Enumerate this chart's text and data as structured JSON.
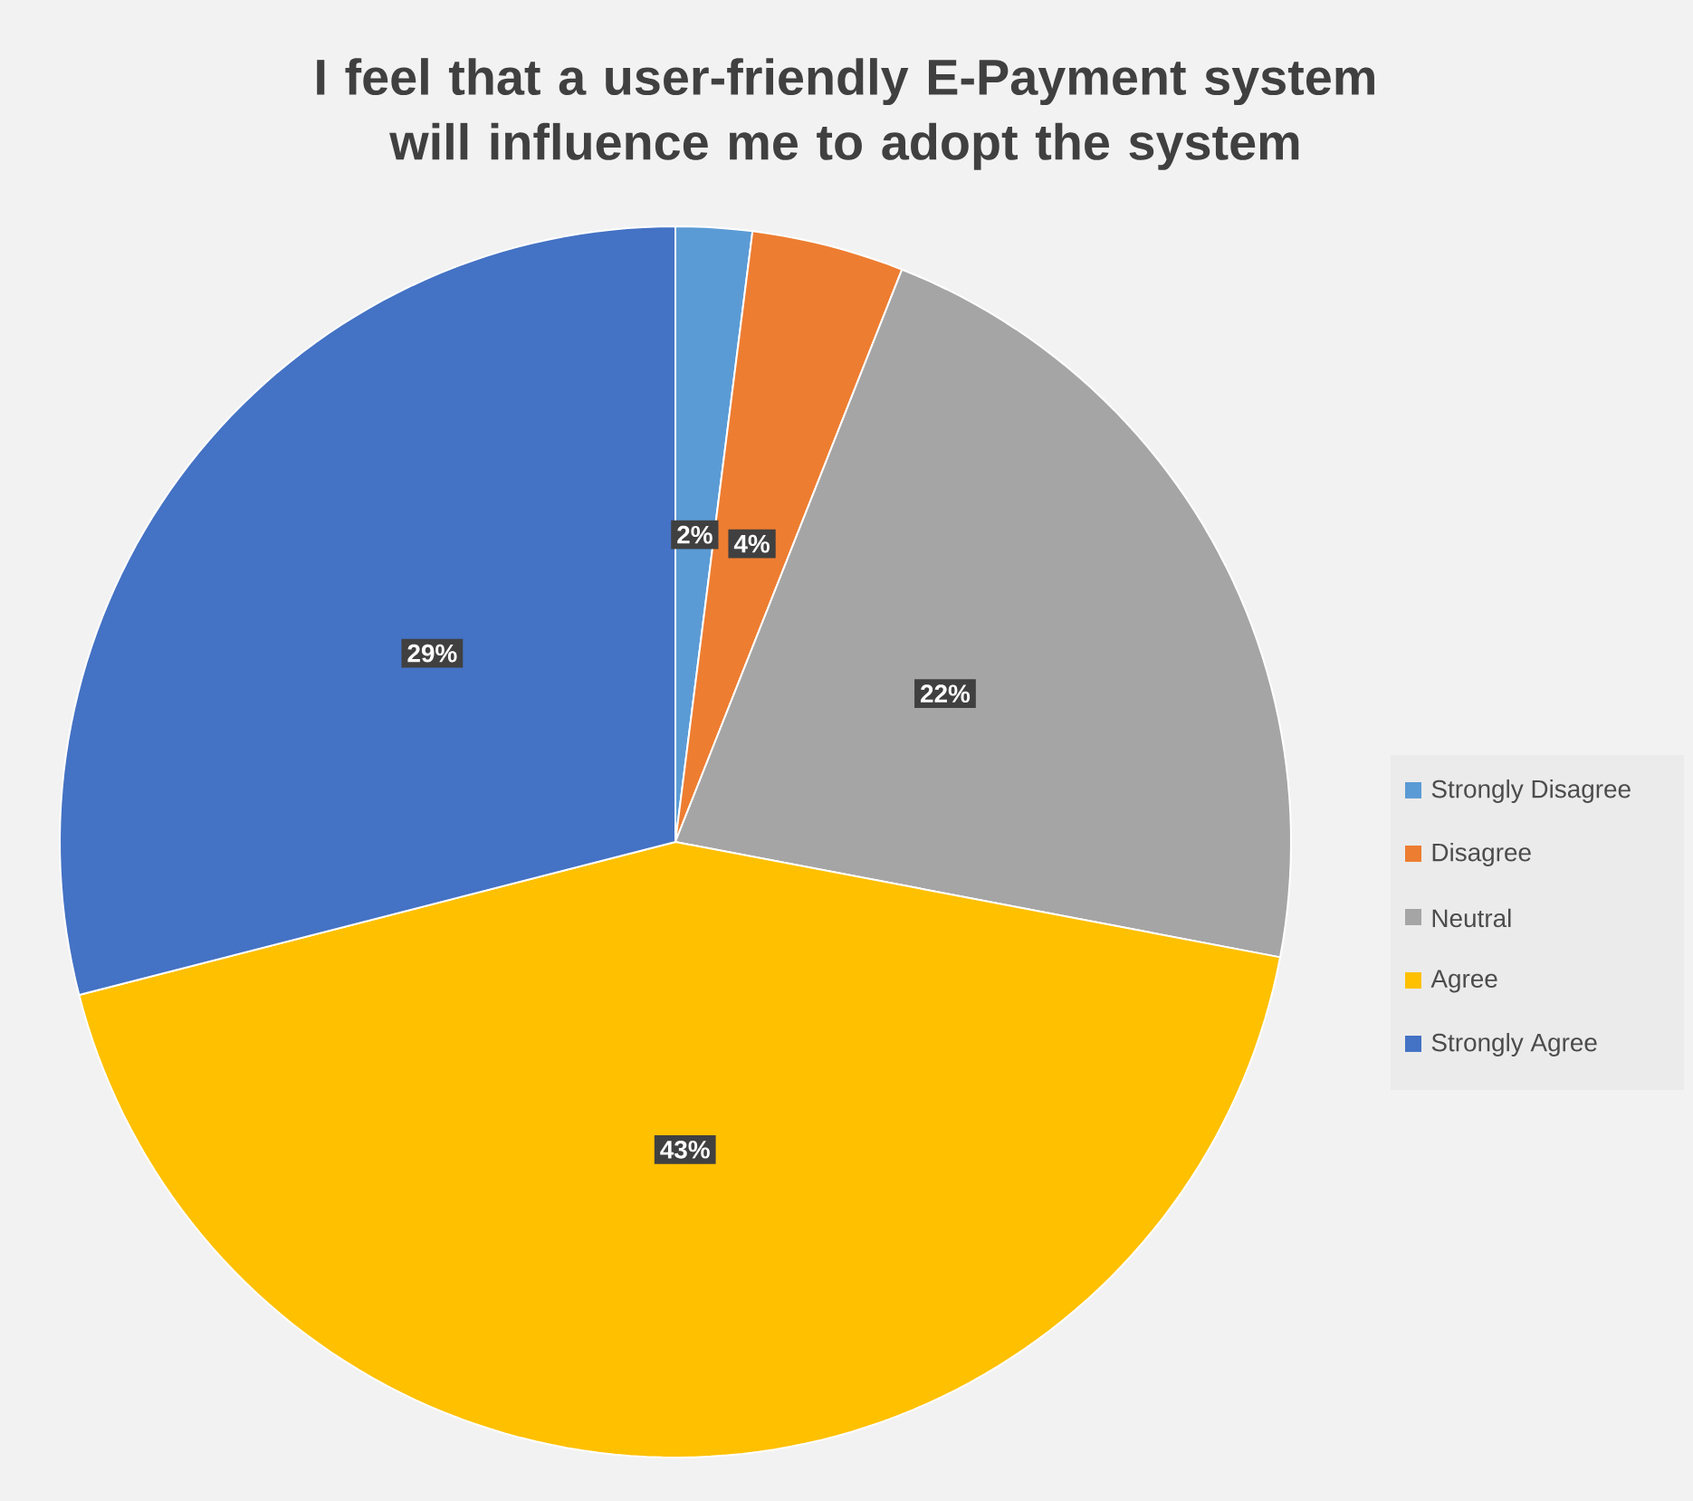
{
  "chart_data": {
    "type": "pie",
    "title": "I feel that a user-friendly E-Payment system will influence me to adopt the system",
    "categories": [
      "Strongly Disagree",
      "Disagree",
      "Neutral",
      "Agree",
      "Strongly Agree"
    ],
    "values": [
      2,
      4,
      22,
      43,
      29
    ],
    "value_labels": [
      "2%",
      "4%",
      "22%",
      "43%",
      "29%"
    ],
    "colors": [
      "#5b9bd5",
      "#ed7d31",
      "#a5a5a5",
      "#ffc000",
      "#4472c4"
    ],
    "legend": "right"
  }
}
